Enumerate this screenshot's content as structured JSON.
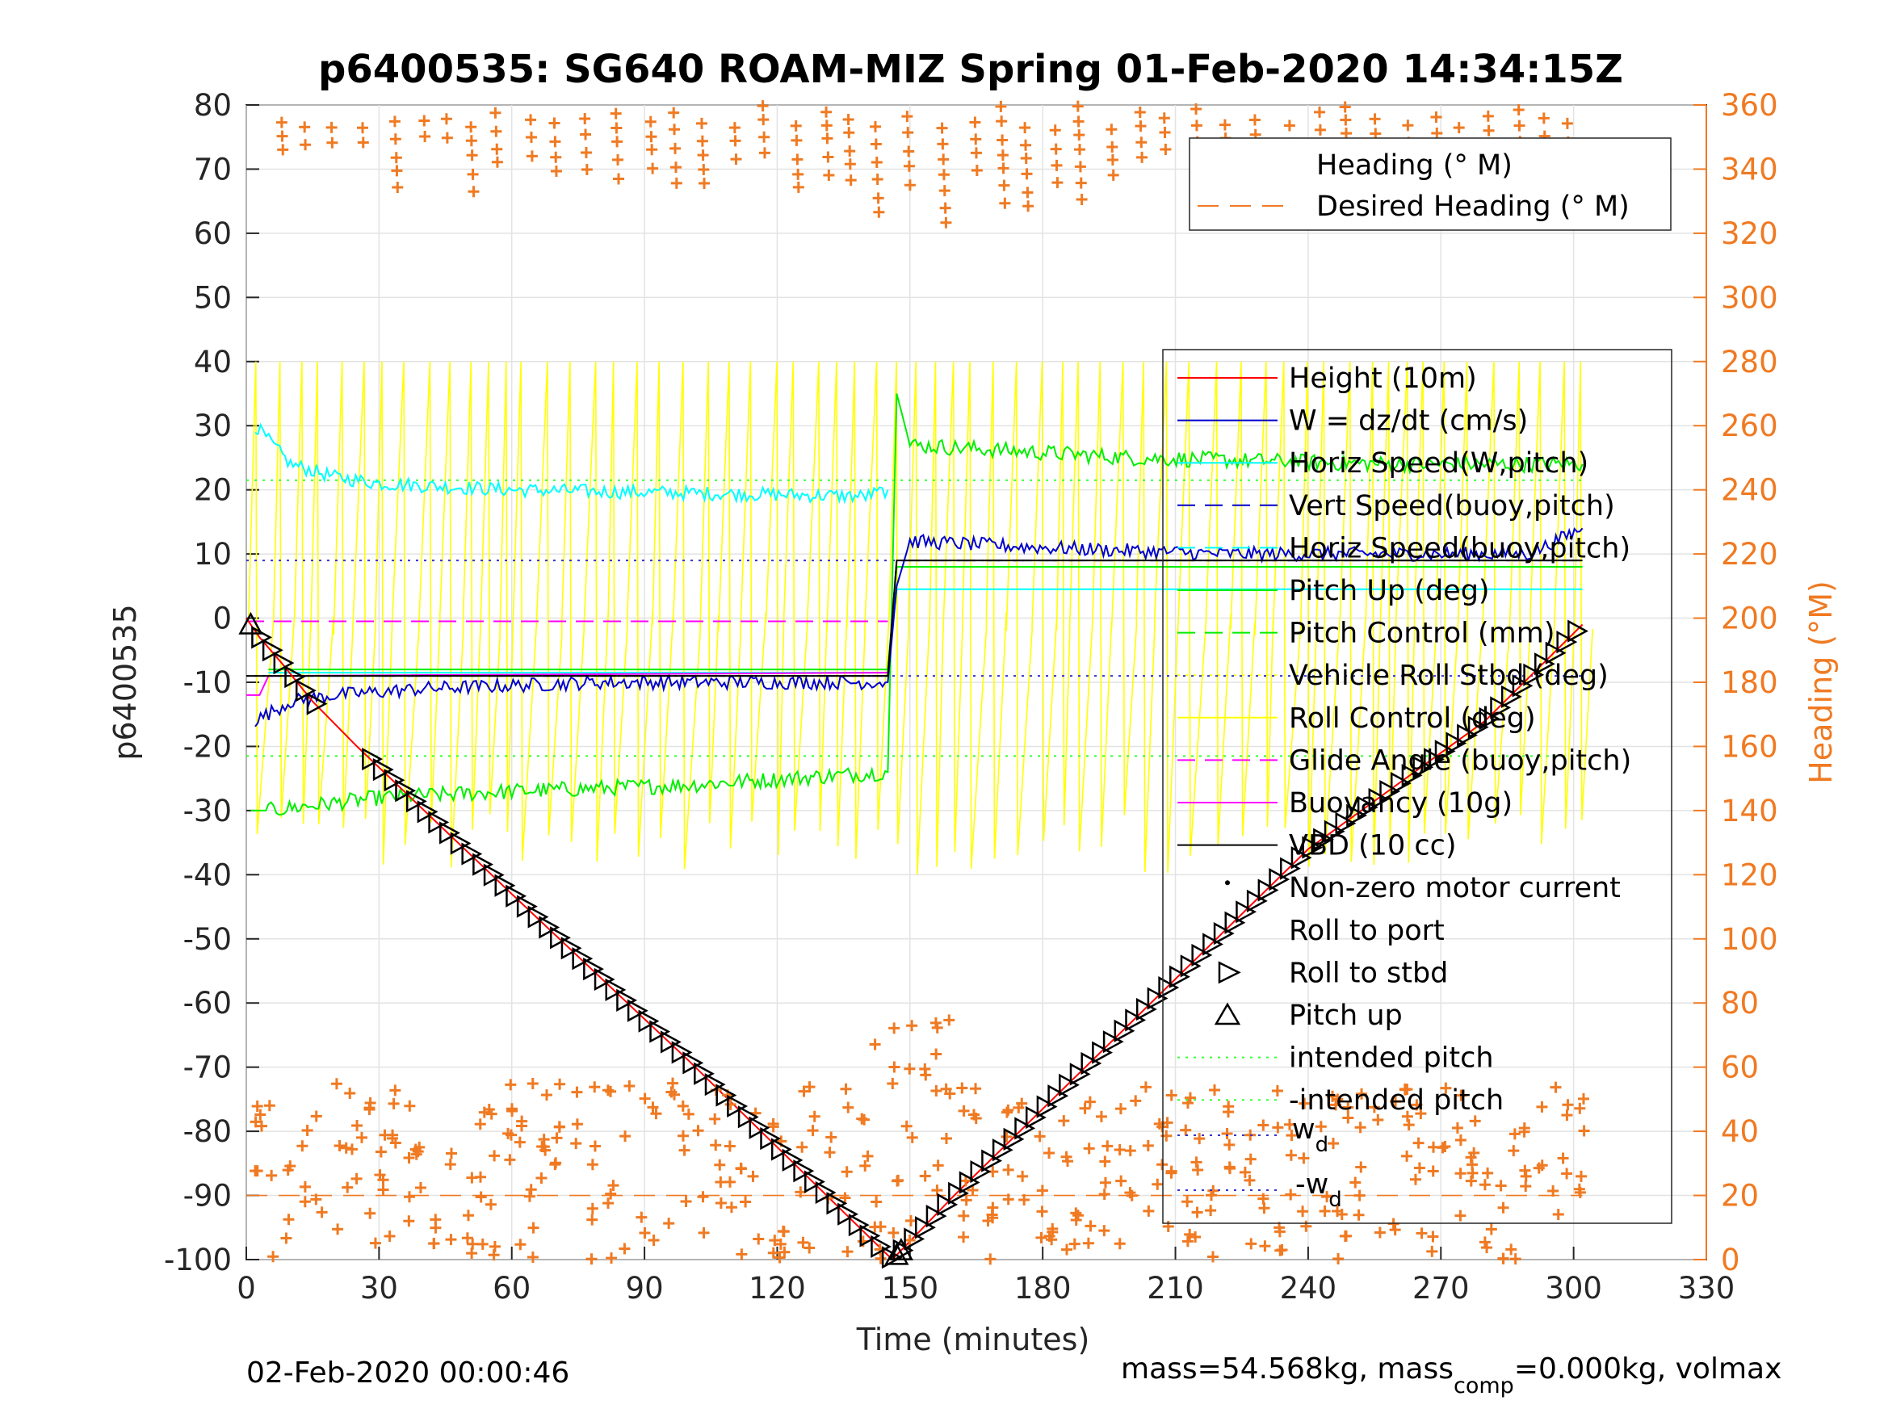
{
  "chart_data": {
    "type": "line",
    "title": "p6400535: SG640 ROAM-MIZ Spring 01-Feb-2020 14:34:15Z",
    "xlabel": "Time (minutes)",
    "ylabel": "p6400535",
    "y2label": "Heading (°M)",
    "xlim": [
      0,
      330
    ],
    "ylim": [
      -100,
      80
    ],
    "y2lim": [
      0,
      360
    ],
    "xticks": [
      "0",
      "30",
      "60",
      "90",
      "120",
      "150",
      "180",
      "210",
      "240",
      "270",
      "300",
      "330"
    ],
    "yticks": [
      "80",
      "70",
      "60",
      "50",
      "40",
      "30",
      "20",
      "10",
      "0",
      "-10",
      "-20",
      "-30",
      "-40",
      "-50",
      "-60",
      "-70",
      "-80",
      "-90",
      "-100"
    ],
    "y2ticks": [
      "360",
      "340",
      "320",
      "300",
      "280",
      "260",
      "240",
      "220",
      "200",
      "180",
      "160",
      "140",
      "120",
      "100",
      "80",
      "60",
      "40",
      "20",
      "0"
    ],
    "grid": true,
    "colors": {
      "height": "#ff0000",
      "w": "#0000cc",
      "horiz_speed": "#00ffff",
      "pitch": "#00ee00",
      "roll": "#ffff00",
      "glide": "#ff00ff",
      "vbd": "#000000",
      "heading": "#f07a22",
      "intended": "#33ff33",
      "wd": "#3333cc"
    },
    "height_profile": {
      "x": [
        0,
        3,
        8,
        15,
        25,
        60,
        100,
        146,
        160,
        200,
        240,
        280,
        302
      ],
      "y": [
        0,
        -3,
        -7,
        -13,
        -20,
        -43,
        -69,
        -100,
        -90,
        -63,
        -36,
        -16,
        -1
      ]
    },
    "markers_pitch_up": {
      "x": [
        1,
        147,
        148
      ]
    },
    "markers_roll_stbd_every_min": 2.5,
    "series": [
      {
        "name": "Height (10m)",
        "x": [
          0,
          3,
          8,
          15,
          25,
          60,
          100,
          146,
          160,
          200,
          240,
          280,
          302
        ],
        "y": [
          0,
          -3,
          -7,
          -13,
          -20,
          -43,
          -69,
          -100,
          -90,
          -63,
          -36,
          -16,
          -1
        ]
      },
      {
        "name": "W = dz/dt (cm/s)",
        "x": [
          2,
          10,
          20,
          40,
          80,
          120,
          145,
          147,
          150,
          180,
          220,
          260,
          290,
          302
        ],
        "y": [
          -16,
          -13,
          -12,
          -11,
          -10,
          -10,
          -10,
          5,
          12,
          11,
          10,
          10,
          10,
          14
        ]
      },
      {
        "name": "Horiz Speed(W,pitch)",
        "x": [
          2,
          10,
          20,
          30,
          60,
          100,
          140,
          145
        ],
        "y": [
          30,
          24,
          22,
          21,
          20,
          19.5,
          19,
          20
        ]
      },
      {
        "name": "Vert Speed(buoy,pitch)",
        "x": [
          5,
          145,
          147,
          302
        ],
        "y": [
          -9,
          -9,
          9,
          9
        ]
      },
      {
        "name": "Horiz Speed(buoy,pitch)",
        "x": [
          5,
          145,
          147,
          302
        ],
        "y": [
          -8.5,
          -8.5,
          4.5,
          4.5
        ]
      },
      {
        "name": "Pitch Up (deg)",
        "x": [
          1,
          5,
          30,
          60,
          100,
          145,
          147,
          150,
          200,
          260,
          302
        ],
        "y": [
          -30,
          -30,
          -28,
          -27,
          -26,
          -24,
          35,
          27,
          25,
          24,
          24
        ]
      },
      {
        "name": "Pitch Control (mm)",
        "x": [
          5,
          145,
          147,
          302
        ],
        "y": [
          -8,
          -8,
          8,
          8
        ]
      },
      {
        "name": "Vehicle Roll Stbd (deg)",
        "x": [],
        "y": []
      },
      {
        "name": "Roll Control (deg)",
        "x": [],
        "y": []
      },
      {
        "name": "Glide Angle (buoy,pitch)",
        "x": [
          0,
          145
        ],
        "y": [
          -0.5,
          -0.5
        ]
      },
      {
        "name": "Buoyancy (10g)",
        "x": [
          0,
          3,
          5,
          145
        ],
        "y": [
          -12,
          -12,
          -9,
          -8.5
        ]
      },
      {
        "name": "VBD (10 cc)",
        "x": [
          0,
          145,
          147,
          302
        ],
        "y": [
          -9,
          -9,
          9,
          9
        ]
      },
      {
        "name": "Non-zero motor current",
        "x": [],
        "y": []
      },
      {
        "name": "Roll to port",
        "x": [],
        "y": []
      },
      {
        "name": "Roll to stbd",
        "x": [],
        "y": []
      },
      {
        "name": "Pitch up",
        "x": [
          1,
          147,
          148
        ],
        "y": [
          0,
          -100,
          -100
        ]
      },
      {
        "name": "intended pitch",
        "x": [
          0,
          302
        ],
        "y": [
          21.5,
          21.5
        ]
      },
      {
        "name": "-intended pitch",
        "x": [
          0,
          302
        ],
        "y": [
          -21.5,
          -21.5
        ]
      },
      {
        "name": "w_d",
        "x": [
          0,
          302
        ],
        "y": [
          9,
          9
        ]
      },
      {
        "name": "-w_d",
        "x": [
          0,
          302
        ],
        "y": [
          -9,
          -9
        ]
      }
    ],
    "heading_series": [
      {
        "name": "Heading (° M)",
        "note_units": "right axis"
      },
      {
        "name": "Desired Heading (° M)",
        "x": [
          0,
          302
        ],
        "y": [
          20,
          20
        ]
      }
    ],
    "legends": {
      "heading": [
        "Heading (° M)",
        "Desired Heading (° M)"
      ],
      "main": [
        "Height (10m)",
        "W = dz/dt (cm/s)",
        "Horiz Speed(W,pitch)",
        "Vert Speed(buoy,pitch)",
        "Horiz Speed(buoy,pitch)",
        "Pitch Up (deg)",
        "Pitch Control (mm)",
        "Vehicle Roll Stbd (deg)",
        "Roll Control (deg)",
        "Glide Angle (buoy,pitch)",
        "Buoyancy (10g)",
        "VBD (10 cc)",
        "Non-zero motor current",
        "Roll to port",
        "Roll to stbd",
        "Pitch up",
        "intended pitch",
        "-intended pitch"
      ],
      "wd_base": "w",
      "wd_sub": "d",
      "neg_wd_base": "-w",
      "neg_wd_sub": "d"
    },
    "footer": {
      "date": "02-Feb-2020 00:00:46",
      "mass_pre": "mass=54.568kg, mass",
      "mass_sub": "comp",
      "mass_post": "=0.000kg, volmax"
    }
  }
}
